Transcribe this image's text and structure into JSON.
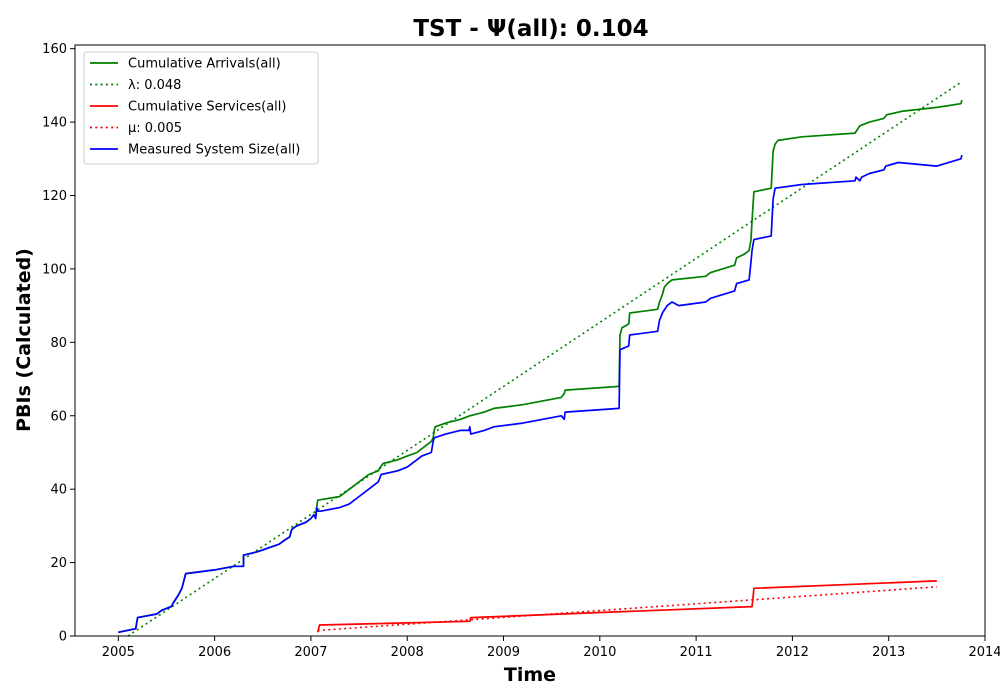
{
  "chart_data": {
    "type": "line",
    "title": "TST -  Ψ(all): 0.104",
    "xlabel": "Time",
    "ylabel": "PBIs (Calculated)",
    "xlim": [
      2004.55,
      2014.0
    ],
    "ylim": [
      0,
      161
    ],
    "x_ticks": [
      2005,
      2006,
      2007,
      2008,
      2009,
      2010,
      2011,
      2012,
      2013,
      2014
    ],
    "y_ticks": [
      0,
      20,
      40,
      60,
      80,
      100,
      120,
      140,
      160
    ],
    "grid": false,
    "legend": "top-left",
    "series": [
      {
        "name": "Cumulative Arrivals(all)",
        "color": "#008000",
        "style": "solid",
        "points": [
          [
            2005.0,
            1
          ],
          [
            2005.18,
            2
          ],
          [
            2005.2,
            5
          ],
          [
            2005.4,
            6
          ],
          [
            2005.45,
            7
          ],
          [
            2005.55,
            8
          ],
          [
            2005.57,
            9
          ],
          [
            2005.62,
            11
          ],
          [
            2005.66,
            13
          ],
          [
            2005.68,
            15
          ],
          [
            2005.7,
            17
          ],
          [
            2006.0,
            18
          ],
          [
            2006.2,
            19
          ],
          [
            2006.3,
            19
          ],
          [
            2006.3,
            22
          ],
          [
            2006.45,
            23
          ],
          [
            2006.67,
            25
          ],
          [
            2006.72,
            26
          ],
          [
            2006.78,
            27
          ],
          [
            2006.8,
            29
          ],
          [
            2006.85,
            30
          ],
          [
            2006.95,
            31
          ],
          [
            2007.0,
            32
          ],
          [
            2007.03,
            33
          ],
          [
            2007.05,
            33
          ],
          [
            2007.06,
            35
          ],
          [
            2007.07,
            37
          ],
          [
            2007.3,
            38
          ],
          [
            2007.4,
            40
          ],
          [
            2007.5,
            42
          ],
          [
            2007.6,
            44
          ],
          [
            2007.7,
            45
          ],
          [
            2007.72,
            46
          ],
          [
            2007.75,
            47
          ],
          [
            2007.9,
            48
          ],
          [
            2008.0,
            49
          ],
          [
            2008.1,
            50
          ],
          [
            2008.15,
            51
          ],
          [
            2008.2,
            52
          ],
          [
            2008.25,
            53
          ],
          [
            2008.27,
            54
          ],
          [
            2008.28,
            56
          ],
          [
            2008.29,
            57
          ],
          [
            2008.4,
            58
          ],
          [
            2008.55,
            59
          ],
          [
            2008.65,
            60
          ],
          [
            2008.8,
            61
          ],
          [
            2008.9,
            62
          ],
          [
            2009.2,
            63
          ],
          [
            2009.6,
            65
          ],
          [
            2009.63,
            66
          ],
          [
            2009.64,
            67
          ],
          [
            2010.2,
            68
          ],
          [
            2010.21,
            82
          ],
          [
            2010.23,
            84
          ],
          [
            2010.3,
            85
          ],
          [
            2010.31,
            88
          ],
          [
            2010.6,
            89
          ],
          [
            2010.62,
            91
          ],
          [
            2010.65,
            93
          ],
          [
            2010.67,
            95
          ],
          [
            2010.7,
            96
          ],
          [
            2010.75,
            97
          ],
          [
            2011.1,
            98
          ],
          [
            2011.15,
            99
          ],
          [
            2011.4,
            101
          ],
          [
            2011.42,
            103
          ],
          [
            2011.5,
            104
          ],
          [
            2011.55,
            105
          ],
          [
            2011.57,
            108
          ],
          [
            2011.58,
            113
          ],
          [
            2011.6,
            121
          ],
          [
            2011.78,
            122
          ],
          [
            2011.8,
            132
          ],
          [
            2011.82,
            134
          ],
          [
            2011.85,
            135
          ],
          [
            2012.1,
            136
          ],
          [
            2012.65,
            137
          ],
          [
            2012.7,
            139
          ],
          [
            2012.8,
            140
          ],
          [
            2012.95,
            141
          ],
          [
            2012.98,
            142
          ],
          [
            2013.15,
            143
          ],
          [
            2013.5,
            144
          ],
          [
            2013.75,
            145
          ],
          [
            2013.76,
            146
          ]
        ]
      },
      {
        "name": "λ: 0.048",
        "color": "#008000",
        "style": "dotted",
        "points": [
          [
            2005.1,
            0
          ],
          [
            2013.76,
            151
          ]
        ]
      },
      {
        "name": "Cumulative Services(all)",
        "color": "#ff0000",
        "style": "solid",
        "points": [
          [
            2007.07,
            1
          ],
          [
            2007.08,
            2
          ],
          [
            2007.09,
            3
          ],
          [
            2008.65,
            4
          ],
          [
            2008.66,
            5
          ],
          [
            2011.58,
            8
          ],
          [
            2011.59,
            10
          ],
          [
            2011.6,
            13
          ],
          [
            2013.5,
            15
          ]
        ]
      },
      {
        "name": "μ: 0.005",
        "color": "#ff0000",
        "style": "dotted",
        "points": [
          [
            2007.07,
            1.5
          ],
          [
            2013.5,
            13.4
          ]
        ]
      },
      {
        "name": "Measured System Size(all)",
        "color": "#0000ff",
        "style": "solid",
        "points": [
          [
            2005.0,
            1
          ],
          [
            2005.18,
            2
          ],
          [
            2005.2,
            5
          ],
          [
            2005.4,
            6
          ],
          [
            2005.45,
            7
          ],
          [
            2005.55,
            8
          ],
          [
            2005.57,
            9
          ],
          [
            2005.62,
            11
          ],
          [
            2005.66,
            13
          ],
          [
            2005.68,
            15
          ],
          [
            2005.7,
            17
          ],
          [
            2006.0,
            18
          ],
          [
            2006.2,
            19
          ],
          [
            2006.3,
            19
          ],
          [
            2006.3,
            22
          ],
          [
            2006.45,
            23
          ],
          [
            2006.67,
            25
          ],
          [
            2006.72,
            26
          ],
          [
            2006.78,
            27
          ],
          [
            2006.8,
            29
          ],
          [
            2006.85,
            30
          ],
          [
            2006.95,
            31
          ],
          [
            2007.0,
            32
          ],
          [
            2007.03,
            33
          ],
          [
            2007.05,
            32
          ],
          [
            2007.06,
            35
          ],
          [
            2007.07,
            34
          ],
          [
            2007.1,
            34
          ],
          [
            2007.3,
            35
          ],
          [
            2007.4,
            36
          ],
          [
            2007.5,
            38
          ],
          [
            2007.6,
            40
          ],
          [
            2007.7,
            42
          ],
          [
            2007.73,
            44
          ],
          [
            2007.9,
            45
          ],
          [
            2008.0,
            46
          ],
          [
            2008.1,
            48
          ],
          [
            2008.15,
            49
          ],
          [
            2008.25,
            50
          ],
          [
            2008.27,
            53
          ],
          [
            2008.28,
            54
          ],
          [
            2008.4,
            55
          ],
          [
            2008.55,
            56
          ],
          [
            2008.64,
            56
          ],
          [
            2008.65,
            57
          ],
          [
            2008.66,
            55
          ],
          [
            2008.8,
            56
          ],
          [
            2008.9,
            57
          ],
          [
            2009.2,
            58
          ],
          [
            2009.6,
            60
          ],
          [
            2009.63,
            59
          ],
          [
            2009.64,
            61
          ],
          [
            2010.2,
            62
          ],
          [
            2010.21,
            78
          ],
          [
            2010.3,
            79
          ],
          [
            2010.31,
            82
          ],
          [
            2010.6,
            83
          ],
          [
            2010.62,
            86
          ],
          [
            2010.65,
            88
          ],
          [
            2010.7,
            90
          ],
          [
            2010.75,
            91
          ],
          [
            2010.82,
            90
          ],
          [
            2011.1,
            91
          ],
          [
            2011.15,
            92
          ],
          [
            2011.4,
            94
          ],
          [
            2011.42,
            96
          ],
          [
            2011.55,
            97
          ],
          [
            2011.57,
            102
          ],
          [
            2011.58,
            105
          ],
          [
            2011.6,
            108
          ],
          [
            2011.78,
            109
          ],
          [
            2011.8,
            119
          ],
          [
            2011.82,
            122
          ],
          [
            2012.1,
            123
          ],
          [
            2012.65,
            124
          ],
          [
            2012.66,
            125
          ],
          [
            2012.7,
            124
          ],
          [
            2012.72,
            125
          ],
          [
            2012.8,
            126
          ],
          [
            2012.95,
            127
          ],
          [
            2012.97,
            128
          ],
          [
            2013.1,
            129
          ],
          [
            2013.5,
            128
          ],
          [
            2013.75,
            130
          ],
          [
            2013.76,
            131
          ]
        ]
      }
    ]
  }
}
